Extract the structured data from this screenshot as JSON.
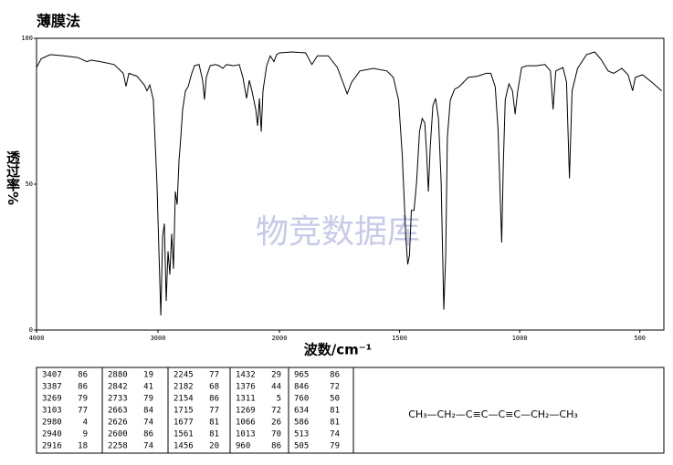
{
  "chart_data": {
    "type": "line",
    "title": "薄膜法",
    "ylabel": "透过率%",
    "xlabel": "波数/cm⁻¹",
    "watermark": "物竞数据库",
    "color": "#000000",
    "xlim": [
      4000,
      400
    ],
    "xscale_break": 2000,
    "ylim": [
      0,
      100
    ],
    "xticks": [
      4000,
      3000,
      2000,
      1500,
      1000,
      500
    ],
    "yticks": [
      100,
      50,
      0
    ],
    "x": [
      4000,
      3962,
      3887,
      3774,
      3662,
      3586,
      3549,
      3474,
      3361,
      3286,
      3263,
      3240,
      3173,
      3113,
      3090,
      3068,
      3038,
      3008,
      2977,
      2962,
      2947,
      2932,
      2917,
      2902,
      2887,
      2872,
      2857,
      2842,
      2827,
      2812,
      2797,
      2774,
      2752,
      2722,
      2699,
      2662,
      2632,
      2617,
      2602,
      2571,
      2526,
      2496,
      2466,
      2436,
      2376,
      2331,
      2301,
      2271,
      2248,
      2226,
      2195,
      2180,
      2165,
      2150,
      2135,
      2105,
      2075,
      2045,
      2023,
      2000,
      1947,
      1891,
      1865,
      1842,
      1797,
      1759,
      1729,
      1718,
      1699,
      1665,
      1609,
      1553,
      1526,
      1504,
      1489,
      1474,
      1466,
      1459,
      1451,
      1440,
      1429,
      1417,
      1406,
      1395,
      1387,
      1380,
      1372,
      1361,
      1350,
      1338,
      1327,
      1316,
      1308,
      1301,
      1289,
      1271,
      1252,
      1233,
      1214,
      1177,
      1139,
      1120,
      1102,
      1090,
      1083,
      1075,
      1068,
      1060,
      1045,
      1030,
      1019,
      1008,
      992,
      970,
      932,
      895,
      872,
      861,
      850,
      820,
      805,
      793,
      782,
      759,
      722,
      688,
      662,
      632,
      609,
      575,
      549,
      530,
      519,
      489,
      451,
      409
    ],
    "values": [
      90,
      93,
      94.4,
      94,
      93.4,
      92,
      92.5,
      92,
      91,
      88,
      83.5,
      88,
      87,
      84,
      82,
      84,
      79,
      50,
      5,
      32,
      36.5,
      10,
      27,
      19,
      33,
      21,
      47.5,
      43,
      58,
      66,
      75.6,
      82,
      83.4,
      88,
      90.6,
      91,
      85.6,
      79,
      86.6,
      90.6,
      91,
      90.6,
      89.7,
      91,
      90.6,
      91,
      86.6,
      79.4,
      85.6,
      82,
      75.6,
      70,
      79.4,
      68,
      82,
      90.6,
      94,
      92,
      94.4,
      95,
      95.3,
      95,
      91,
      94,
      94,
      90,
      83.4,
      81,
      85,
      88.8,
      89.7,
      88.8,
      86.6,
      78.8,
      60,
      32,
      22.5,
      25.6,
      41,
      41,
      50.6,
      68,
      72.5,
      71,
      60,
      47.5,
      63,
      77,
      79.4,
      72.5,
      50.6,
      7,
      25.6,
      66,
      78.8,
      82.5,
      83.4,
      85,
      86.6,
      87,
      88,
      88,
      83.4,
      69,
      50.6,
      30,
      57,
      79,
      84.4,
      82,
      74,
      82,
      90,
      90.6,
      90.6,
      91,
      88.8,
      75.6,
      88.8,
      90,
      85,
      52,
      82,
      89.7,
      94.4,
      95.3,
      92.8,
      88.8,
      88,
      89.7,
      87.5,
      82,
      86.6,
      87.5,
      85,
      82
    ]
  },
  "table": {
    "columns": [
      [
        [
          3407,
          86
        ],
        [
          3387,
          86
        ],
        [
          3269,
          79
        ],
        [
          3103,
          77
        ],
        [
          2980,
          4
        ],
        [
          2940,
          9
        ],
        [
          2916,
          18
        ]
      ],
      [
        [
          2880,
          19
        ],
        [
          2842,
          41
        ],
        [
          2733,
          79
        ],
        [
          2663,
          84
        ],
        [
          2626,
          74
        ],
        [
          2600,
          86
        ],
        [
          2258,
          74
        ]
      ],
      [
        [
          2245,
          77
        ],
        [
          2182,
          68
        ],
        [
          2154,
          86
        ],
        [
          1715,
          77
        ],
        [
          1677,
          81
        ],
        [
          1561,
          81
        ],
        [
          1456,
          20
        ]
      ],
      [
        [
          1432,
          29
        ],
        [
          1376,
          44
        ],
        [
          1311,
          5
        ],
        [
          1269,
          72
        ],
        [
          1066,
          26
        ],
        [
          1013,
          70
        ],
        [
          960,
          86
        ]
      ],
      [
        [
          965,
          86
        ],
        [
          846,
          72
        ],
        [
          760,
          50
        ],
        [
          634,
          81
        ],
        [
          586,
          81
        ],
        [
          513,
          74
        ],
        [
          505,
          79
        ]
      ]
    ],
    "formula": "CH₃—CH₂—C≡C—C≡C—CH₂—CH₃"
  }
}
